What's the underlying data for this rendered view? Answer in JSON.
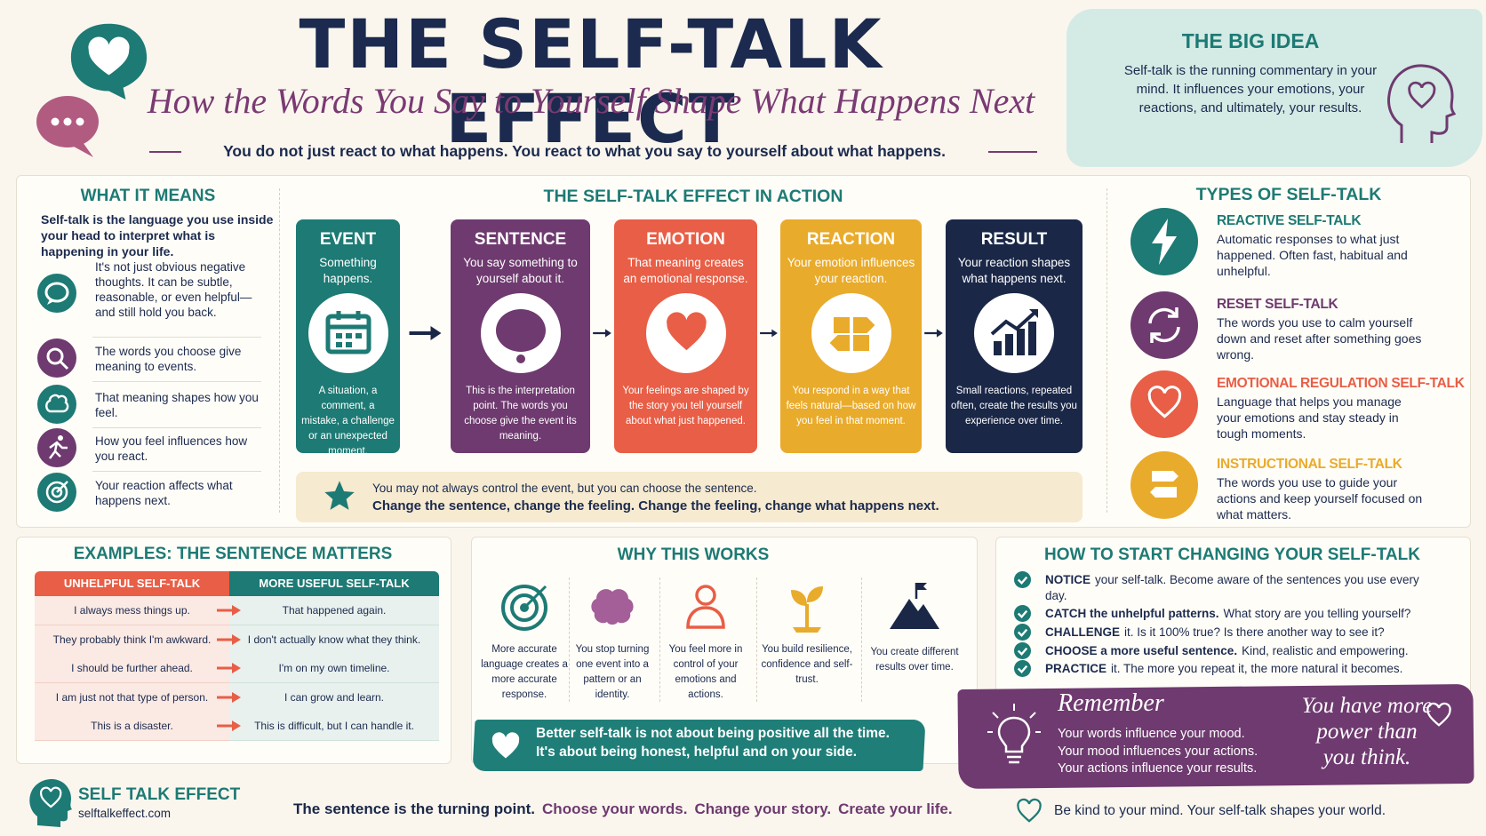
{
  "header": {
    "title": "THE SELF-TALK EFFECT",
    "subtitle": "How the Words You Say to Yourself Shape What Happens Next",
    "tagline": "You do not just react to what happens. You react to what you say to yourself about what happens."
  },
  "big_idea": {
    "title": "THE BIG IDEA",
    "text": "Self-talk is the running commentary in your mind. It influences your emotions, your reactions, and ultimately, your results."
  },
  "what_it_means": {
    "title": "WHAT IT MEANS",
    "intro": "Self-talk is the language you use inside your head to interpret what is happening in your life.",
    "items": [
      "It's not just obvious negative thoughts. It can be subtle, reasonable, or even helpful—and still hold you back.",
      "The words you choose give meaning to events.",
      "That meaning shapes how you feel.",
      "How you feel influences how you react.",
      "Your reaction affects what happens next."
    ]
  },
  "action": {
    "title": "THE SELF-TALK EFFECT IN ACTION",
    "steps": [
      {
        "title": "EVENT",
        "subtitle": "Something happens.",
        "description": "A situation, a comment, a mistake, a challenge or an unexpected moment."
      },
      {
        "title": "SENTENCE",
        "subtitle": "You say something to yourself about it.",
        "description": "This is the interpretation point. The words you choose give the event its meaning."
      },
      {
        "title": "EMOTION",
        "subtitle": "That meaning creates an emotional response.",
        "description": "Your feelings are shaped by the story you tell yourself about what just happened."
      },
      {
        "title": "REACTION",
        "subtitle": "Your emotion influences your reaction.",
        "description": "You respond in a way that feels natural—based on how you feel in that moment."
      },
      {
        "title": "RESULT",
        "subtitle": "Your reaction shapes what happens next.",
        "description": "Small reactions, repeated often, create the results you experience over time."
      }
    ],
    "note": {
      "line1": "You may not always control the event, but you can choose the sentence.",
      "line2": "Change the sentence, change the feeling. Change the feeling, change what happens next."
    }
  },
  "types": {
    "title": "TYPES OF SELF-TALK",
    "items": [
      {
        "title": "REACTIVE SELF-TALK",
        "text": "Automatic responses to what just happened. Often fast, habitual and unhelpful."
      },
      {
        "title": "RESET SELF-TALK",
        "text": "The words you use to calm yourself down and reset after something goes wrong."
      },
      {
        "title": "EMOTIONAL REGULATION SELF-TALK",
        "text": "Language that helps you manage your emotions and stay steady in tough moments."
      },
      {
        "title": "INSTRUCTIONAL SELF-TALK",
        "text": "The words you use to guide your actions and keep yourself focused on what matters."
      }
    ]
  },
  "examples": {
    "title": "EXAMPLES: THE SENTENCE MATTERS",
    "headers": [
      "UNHELPFUL SELF-TALK",
      "MORE USEFUL SELF-TALK"
    ],
    "rows": [
      [
        "I always mess things up.",
        "That happened again."
      ],
      [
        "They probably think I'm awkward.",
        "I don't actually know what they think."
      ],
      [
        "I should be further ahead.",
        "I'm on my own timeline."
      ],
      [
        "I am just not that type of person.",
        "I can grow and learn."
      ],
      [
        "This is a disaster.",
        "This is difficult, but I can handle it."
      ]
    ]
  },
  "why": {
    "title": "WHY THIS WORKS",
    "items": [
      "More accurate language creates a more accurate response.",
      "You stop turning one event into a pattern or an identity.",
      "You feel more in control of your emotions and actions.",
      "You build resilience, confidence and self-trust.",
      "You create different results over time."
    ]
  },
  "banner": {
    "line1": "Better self-talk is not about being positive all the time.",
    "line2": "It's about being honest, helpful and on your side."
  },
  "how": {
    "title": "HOW TO START CHANGING YOUR SELF-TALK",
    "steps": [
      {
        "bold": "NOTICE",
        "text": "your self-talk. Become aware of the sentences you use every day."
      },
      {
        "bold": "CATCH the unhelpful patterns.",
        "text": "What story are you telling yourself?"
      },
      {
        "bold": "CHALLENGE",
        "text": "it. Is it 100% true? Is there another way to see it?"
      },
      {
        "bold": "CHOOSE a more useful sentence.",
        "text": "Kind, realistic and empowering."
      },
      {
        "bold": "PRACTICE",
        "text": "it. The more you repeat it, the more natural it becomes."
      }
    ]
  },
  "remember": {
    "title": "Remember",
    "lines": [
      "Your words influence your mood.",
      "Your mood influences your actions.",
      "Your actions influence your results."
    ],
    "aside": "You have more power than you think."
  },
  "footer": {
    "brand": "SELF TALK EFFECT",
    "url": "selftalkeffect.com",
    "slogan": [
      "The sentence is the turning point.",
      "Choose your words.",
      "Change your story.",
      "Create your life."
    ],
    "closing": "Be kind to your mind. Your self-talk shapes your world."
  }
}
